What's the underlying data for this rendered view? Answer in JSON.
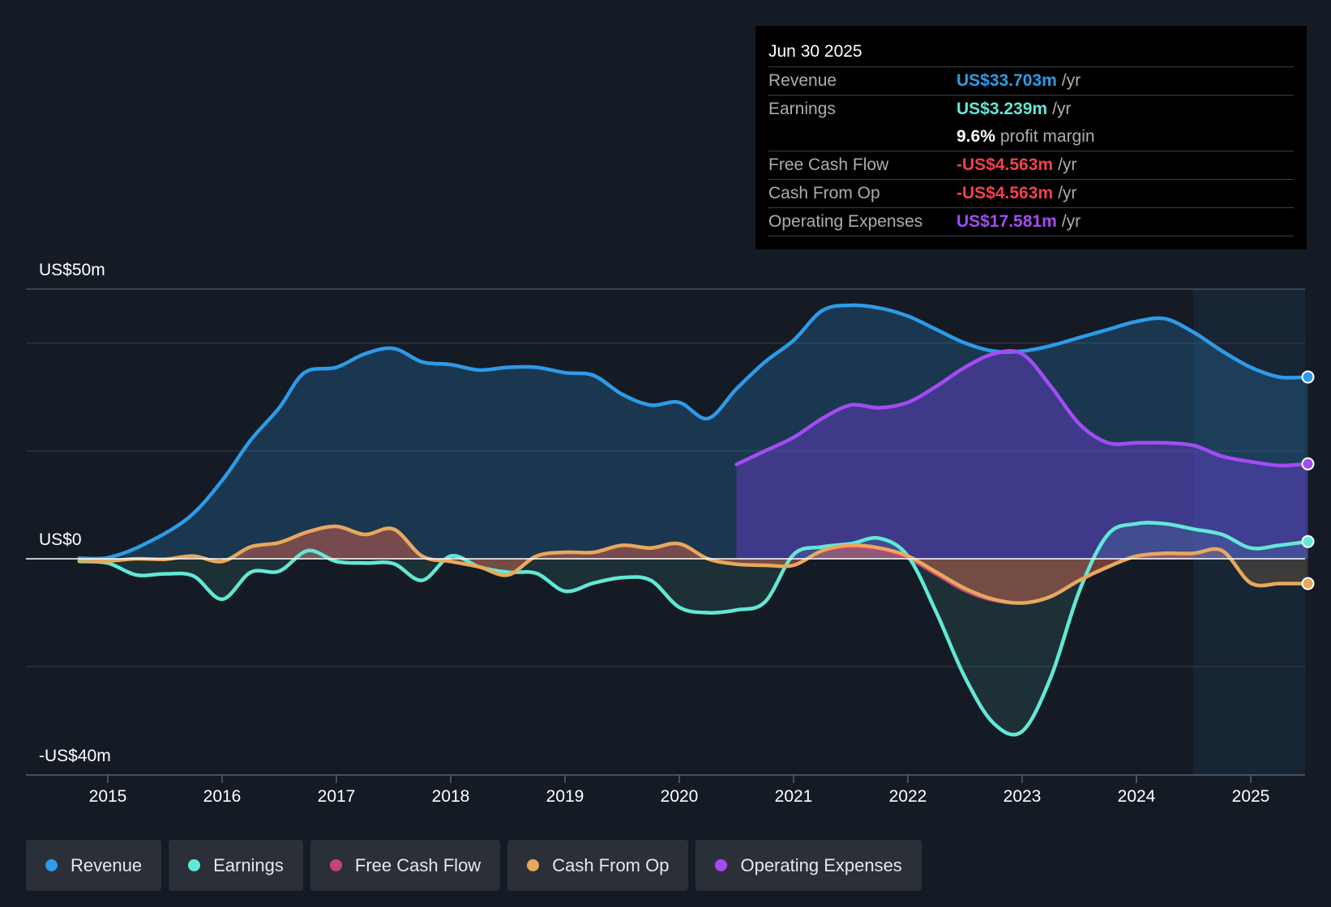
{
  "tooltip": {
    "date": "Jun 30 2025",
    "rows": [
      {
        "label": "Revenue",
        "value": "US$33.703m",
        "unit": "/yr",
        "color": "#2d9be8"
      },
      {
        "label": "Earnings",
        "value": "US$3.239m",
        "unit": "/yr",
        "color": "#62e8d6"
      },
      {
        "label": "",
        "value": "9.6%",
        "unit": "profit margin",
        "color": "#ffffff"
      },
      {
        "label": "Free Cash Flow",
        "value": "-US$4.563m",
        "unit": "/yr",
        "color": "#f0434d"
      },
      {
        "label": "Cash From Op",
        "value": "-US$4.563m",
        "unit": "/yr",
        "color": "#f0434d"
      },
      {
        "label": "Operating Expenses",
        "value": "US$17.581m",
        "unit": "/yr",
        "color": "#a34cf2"
      }
    ]
  },
  "legend": [
    {
      "label": "Revenue",
      "color": "#2d9be8"
    },
    {
      "label": "Earnings",
      "color": "#62e8d6"
    },
    {
      "label": "Free Cash Flow",
      "color": "#c4437b"
    },
    {
      "label": "Cash From Op",
      "color": "#e8a85c"
    },
    {
      "label": "Operating Expenses",
      "color": "#a34cf2"
    }
  ],
  "chart_data": {
    "type": "area",
    "title": "",
    "xlabel": "",
    "ylabel": "",
    "y_top_label": "US$50m",
    "y_zero_label": "US$0",
    "y_bottom_label": "-US$40m",
    "ylim": [
      -40,
      50
    ],
    "xlim": [
      2014.3,
      2025.5
    ],
    "forecast_start": 2024.5,
    "x_ticks": [
      2015,
      2016,
      2017,
      2018,
      2019,
      2020,
      2021,
      2022,
      2023,
      2024,
      2025
    ],
    "x_tick_labels": [
      "2015",
      "2016",
      "2017",
      "2018",
      "2019",
      "2020",
      "2021",
      "2022",
      "2023",
      "2024",
      "2025"
    ],
    "gridlines": [
      50,
      40,
      20,
      -20
    ],
    "series": [
      {
        "name": "Revenue",
        "color": "#2d9be8",
        "x": [
          2014.75,
          2015.0,
          2015.3,
          2015.7,
          2016.0,
          2016.25,
          2016.5,
          2016.72,
          2017.0,
          2017.25,
          2017.5,
          2017.75,
          2018.0,
          2018.25,
          2018.5,
          2018.75,
          2019.0,
          2019.25,
          2019.5,
          2019.75,
          2020.0,
          2020.25,
          2020.5,
          2020.75,
          2021.0,
          2021.25,
          2021.5,
          2021.75,
          2022.0,
          2022.25,
          2022.5,
          2022.75,
          2023.0,
          2023.25,
          2023.5,
          2023.75,
          2024.0,
          2024.25,
          2024.5,
          2024.75,
          2025.0,
          2025.25,
          2025.5
        ],
        "y": [
          0.1,
          0.2,
          2.5,
          7.5,
          14.5,
          22.0,
          28.0,
          34.5,
          35.5,
          38.0,
          39.0,
          36.5,
          36.0,
          35.0,
          35.5,
          35.5,
          34.5,
          34.0,
          30.5,
          28.5,
          29.0,
          26.0,
          31.5,
          36.5,
          40.5,
          46.0,
          47.0,
          46.5,
          45.0,
          42.5,
          40.0,
          38.5,
          38.5,
          39.5,
          41.0,
          42.5,
          44.0,
          44.5,
          42.0,
          38.5,
          35.5,
          33.7,
          33.7
        ]
      },
      {
        "name": "Earnings",
        "color": "#62e8d6",
        "x": [
          2014.75,
          2015.0,
          2015.25,
          2015.5,
          2015.75,
          2016.0,
          2016.25,
          2016.5,
          2016.75,
          2017.0,
          2017.25,
          2017.5,
          2017.75,
          2018.0,
          2018.25,
          2018.5,
          2018.75,
          2019.0,
          2019.25,
          2019.5,
          2019.75,
          2020.0,
          2020.25,
          2020.5,
          2020.75,
          2021.0,
          2021.25,
          2021.5,
          2021.75,
          2022.0,
          2022.25,
          2022.5,
          2022.75,
          2023.0,
          2023.25,
          2023.5,
          2023.75,
          2024.0,
          2024.25,
          2024.5,
          2024.75,
          2025.0,
          2025.25,
          2025.5
        ],
        "y": [
          -0.5,
          -0.8,
          -3.0,
          -2.8,
          -3.2,
          -7.5,
          -2.5,
          -2.3,
          1.5,
          -0.5,
          -0.8,
          -0.9,
          -4.0,
          0.5,
          -1.5,
          -2.5,
          -2.7,
          -6.0,
          -4.5,
          -3.5,
          -4.0,
          -9.0,
          -10.0,
          -9.5,
          -8.0,
          0.8,
          2.2,
          2.8,
          3.8,
          0.5,
          -10.0,
          -22.0,
          -30.5,
          -32.0,
          -22.0,
          -6.0,
          4.5,
          6.5,
          6.5,
          5.5,
          4.5,
          2.0,
          2.5,
          3.2
        ]
      },
      {
        "name": "Free Cash Flow",
        "color": "#c4437b",
        "x": [
          2014.75,
          2015.0,
          2015.25,
          2015.5,
          2015.75,
          2016.0,
          2016.25,
          2016.5,
          2016.75,
          2017.0,
          2017.25,
          2017.5,
          2017.75,
          2018.0,
          2018.25,
          2018.5,
          2018.75,
          2019.0,
          2019.25,
          2019.5,
          2019.75,
          2020.0,
          2020.25,
          2020.5,
          2020.75,
          2021.0,
          2021.25,
          2021.5,
          2021.75,
          2022.0,
          2022.25,
          2022.5,
          2022.75,
          2023.0,
          2023.25,
          2023.5,
          2023.75,
          2024.0,
          2024.25,
          2024.5
        ],
        "y": [
          -0.3,
          -0.4,
          0.0,
          -0.1,
          0.5,
          -0.5,
          2.2,
          3.0,
          5.0,
          6.0,
          4.5,
          5.5,
          0.5,
          -0.5,
          -1.5,
          -3.0,
          0.5,
          1.2,
          1.2,
          2.5,
          2.0,
          2.8,
          0.0,
          -1.0,
          -1.2,
          -1.2,
          1.5,
          2.0,
          1.5,
          0.0,
          -3.0,
          -6.0,
          -7.8,
          -8.2,
          -7.0,
          -4.0,
          -1.5,
          0.5,
          1.0,
          1.0
        ]
      },
      {
        "name": "Cash From Op",
        "color": "#e8a85c",
        "x": [
          2014.75,
          2015.0,
          2015.25,
          2015.5,
          2015.75,
          2016.0,
          2016.25,
          2016.5,
          2016.75,
          2017.0,
          2017.25,
          2017.5,
          2017.75,
          2018.0,
          2018.25,
          2018.5,
          2018.75,
          2019.0,
          2019.25,
          2019.5,
          2019.75,
          2020.0,
          2020.25,
          2020.5,
          2020.75,
          2021.0,
          2021.25,
          2021.5,
          2021.75,
          2022.0,
          2022.25,
          2022.5,
          2022.75,
          2023.0,
          2023.25,
          2023.5,
          2023.75,
          2024.0,
          2024.25,
          2024.5,
          2024.75,
          2025.0,
          2025.25,
          2025.5
        ],
        "y": [
          -0.3,
          -0.4,
          0.0,
          -0.1,
          0.5,
          -0.5,
          2.2,
          3.0,
          5.0,
          6.0,
          4.5,
          5.5,
          0.5,
          -0.5,
          -1.5,
          -3.0,
          0.5,
          1.2,
          1.2,
          2.5,
          2.0,
          2.8,
          0.0,
          -1.0,
          -1.2,
          -1.2,
          1.5,
          2.5,
          2.0,
          0.5,
          -2.5,
          -5.5,
          -7.5,
          -8.2,
          -7.0,
          -4.0,
          -1.5,
          0.5,
          1.0,
          1.0,
          1.5,
          -4.5,
          -4.6,
          -4.6
        ]
      },
      {
        "name": "Operating Expenses",
        "color": "#a34cf2",
        "x": [
          2020.5,
          2020.75,
          2021.0,
          2021.25,
          2021.5,
          2021.75,
          2022.0,
          2022.25,
          2022.5,
          2022.75,
          2023.0,
          2023.25,
          2023.5,
          2023.75,
          2024.0,
          2024.25,
          2024.5,
          2024.75,
          2025.0,
          2025.25,
          2025.5
        ],
        "y": [
          17.5,
          20.0,
          22.5,
          26.0,
          28.5,
          28.0,
          29.0,
          32.0,
          35.5,
          38.0,
          38.0,
          32.0,
          25.0,
          21.5,
          21.5,
          21.5,
          21.0,
          19.0,
          18.0,
          17.3,
          17.6
        ]
      }
    ]
  }
}
